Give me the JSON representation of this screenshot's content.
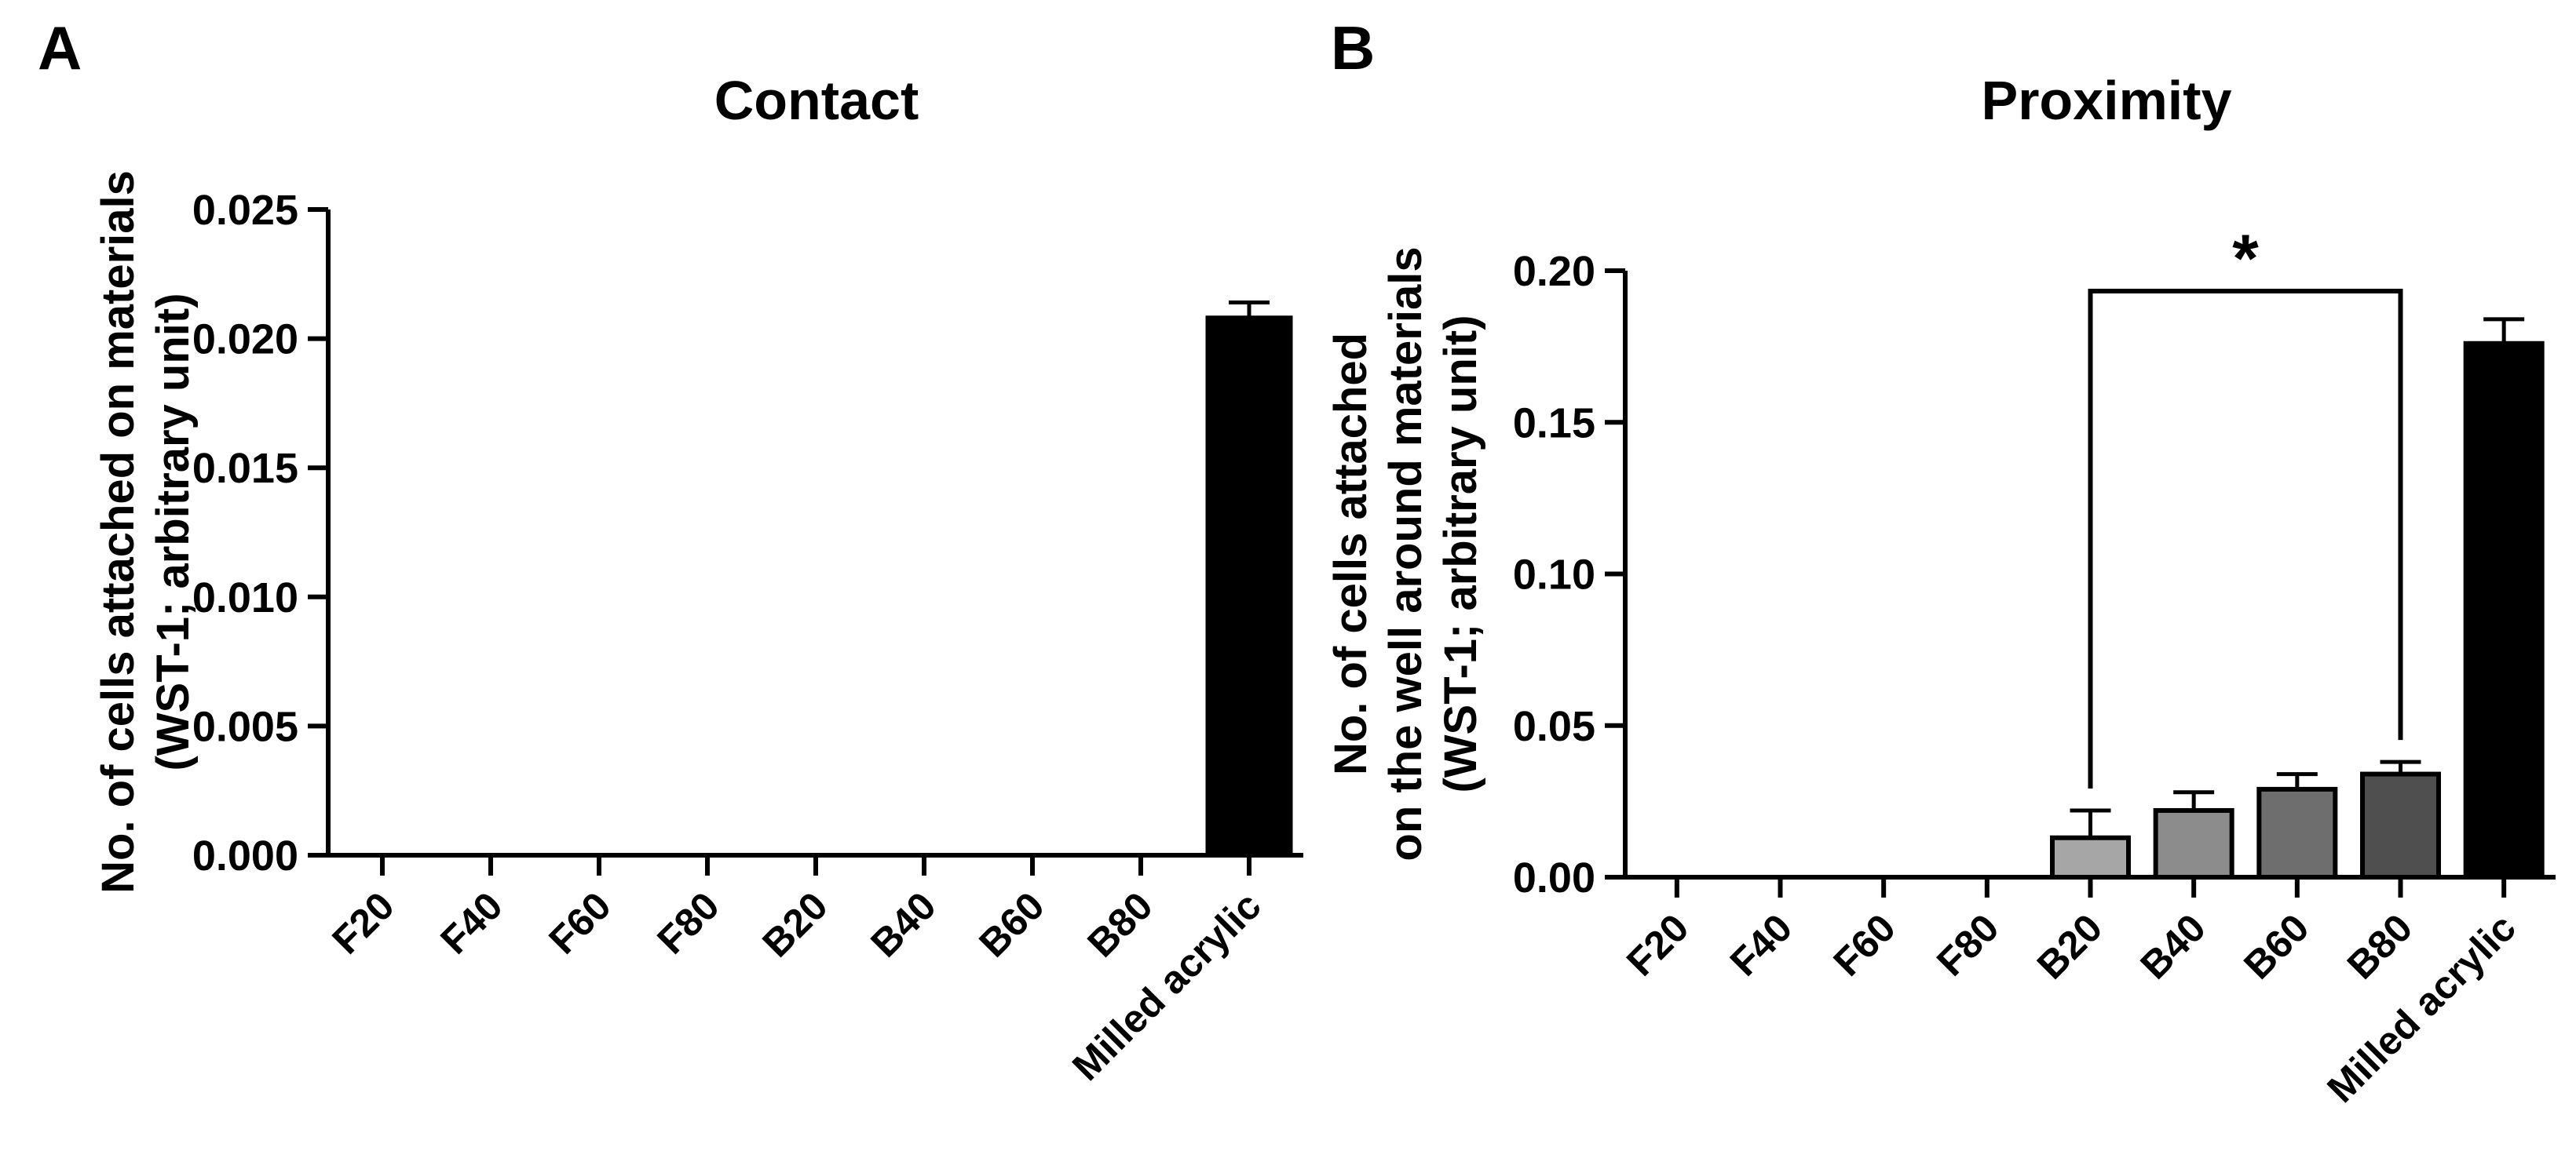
{
  "panels": [
    {
      "letter": "A"
    },
    {
      "letter": "B"
    }
  ],
  "chart_data": [
    {
      "type": "bar",
      "title": "Contact",
      "ylabel_lines": [
        "No. of cells attached on materials",
        "(WST-1; arbitrary unit)"
      ],
      "xlabel": "",
      "categories": [
        "F20",
        "F40",
        "F60",
        "F80",
        "B20",
        "B40",
        "B60",
        "B80",
        "Milled acrylic"
      ],
      "values": [
        0,
        0,
        0,
        0,
        0,
        0,
        0,
        0,
        0.0208
      ],
      "error": [
        0,
        0,
        0,
        0,
        0,
        0,
        0,
        0,
        0.0006
      ],
      "colors": [
        "#000000",
        "#000000",
        "#000000",
        "#000000",
        "#000000",
        "#000000",
        "#000000",
        "#000000",
        "#000000"
      ],
      "ylim": [
        0,
        0.025
      ],
      "yticks": [
        "0.000",
        "0.005",
        "0.010",
        "0.015",
        "0.020",
        "0.025"
      ],
      "grid": false,
      "legend": "none",
      "significance": []
    },
    {
      "type": "bar",
      "title": "Proximity",
      "ylabel_lines": [
        "No. of cells attached",
        "on the well around materials",
        "(WST-1; arbitrary unit)"
      ],
      "xlabel": "",
      "categories": [
        "F20",
        "F40",
        "F60",
        "F80",
        "B20",
        "B40",
        "B60",
        "B80",
        "Milled acrylic"
      ],
      "values": [
        0,
        0,
        0,
        0,
        0.013,
        0.022,
        0.029,
        0.034,
        0.176
      ],
      "error": [
        0,
        0,
        0,
        0,
        0.009,
        0.006,
        0.005,
        0.004,
        0.008
      ],
      "colors": [
        "#ffffff",
        "#ffffff",
        "#ffffff",
        "#ffffff",
        "#a6a6a6",
        "#8c8c8c",
        "#6e6e6e",
        "#4f4f4f",
        "#000000"
      ],
      "ylim": [
        0,
        0.2
      ],
      "yticks": [
        "0.00",
        "0.05",
        "0.10",
        "0.15",
        "0.20"
      ],
      "grid": false,
      "legend": "none",
      "significance": [
        {
          "from": "B20",
          "to": "B80",
          "label": "*"
        }
      ]
    }
  ]
}
